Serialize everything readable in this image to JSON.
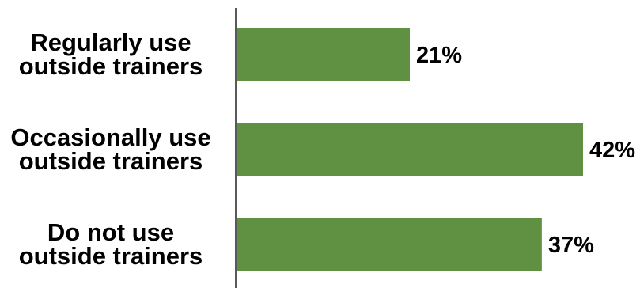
{
  "chart_data": {
    "type": "bar",
    "orientation": "horizontal",
    "categories": [
      [
        "Regularly use",
        "outside trainers"
      ],
      [
        "Occasionally use",
        "outside trainers"
      ],
      [
        "Do not use",
        "outside trainers"
      ]
    ],
    "values": [
      21,
      42,
      37
    ],
    "value_labels": [
      "21%",
      "42%",
      "37%"
    ],
    "unit": "%",
    "xlim": [
      0,
      42
    ],
    "grid": false,
    "legend": "none",
    "bar_color": "#609042",
    "axis_color": "#595959"
  }
}
